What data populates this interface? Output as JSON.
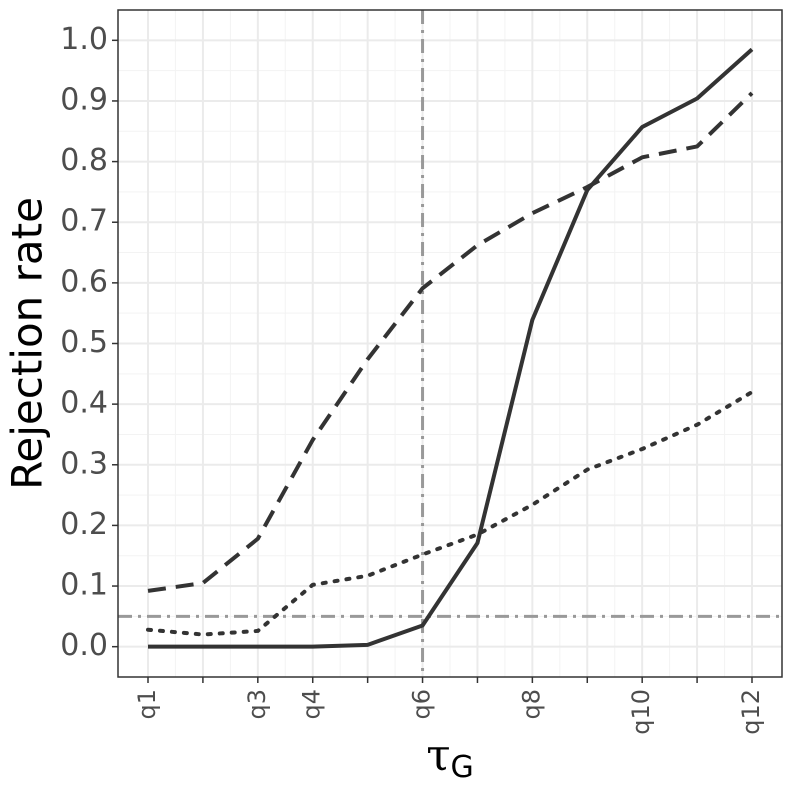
{
  "chart_data": {
    "type": "line",
    "y_label": "Rejection rate",
    "x_label": {
      "symbol": "τ",
      "subscript": "G"
    },
    "categories": [
      "q1",
      null,
      "q3",
      "q4",
      null,
      "q6",
      null,
      "q8",
      null,
      "q10",
      null,
      "q12"
    ],
    "series": [
      {
        "color": "#333333",
        "dash": "solid",
        "values": [
          0,
          0,
          0,
          0,
          0.003,
          0.035,
          0.171,
          0.539,
          0.753,
          0.857,
          0.904,
          0.985
        ]
      },
      {
        "color": "#333333",
        "dash": "dashed",
        "values": [
          0.092,
          0.105,
          0.178,
          0.341,
          0.474,
          0.591,
          0.662,
          0.715,
          0.758,
          0.807,
          0.825,
          0.913
        ]
      },
      {
        "color": "#333333",
        "dash": "dotted",
        "values": [
          0.028,
          0.02,
          0.026,
          0.102,
          0.117,
          0.152,
          0.185,
          0.234,
          0.292,
          0.326,
          0.366,
          0.42
        ]
      }
    ],
    "ylim": [
      -0.05,
      1.05
    ],
    "yticks": [
      {
        "value": 0,
        "label": "0.0"
      },
      0.1,
      0.2,
      0.3,
      0.4,
      0.5,
      0.6,
      0.7,
      0.8,
      0.9,
      {
        "value": 1,
        "label": "1.0"
      }
    ],
    "grid": true,
    "reference_lines": {
      "y": 0.05,
      "x": "q6",
      "color": "#999999"
    }
  }
}
